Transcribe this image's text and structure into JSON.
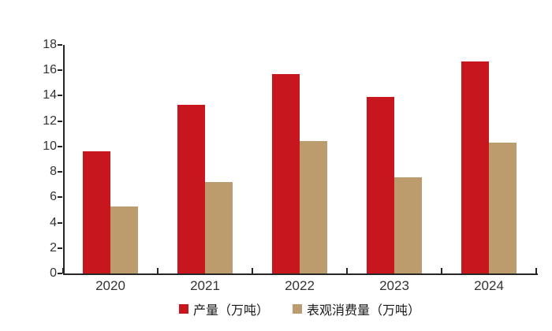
{
  "chart_data": {
    "type": "bar",
    "categories": [
      "2020",
      "2021",
      "2022",
      "2023",
      "2024"
    ],
    "series": [
      {
        "name": "产量（万吨）",
        "color": "#C8161E",
        "values": [
          9.6,
          13.3,
          15.7,
          13.9,
          16.7
        ]
      },
      {
        "name": "表观消费量（万吨）",
        "color": "#BC9B6D",
        "values": [
          5.3,
          7.2,
          10.4,
          7.6,
          10.3
        ]
      }
    ],
    "title": "",
    "xlabel": "",
    "ylabel": "",
    "ylim": [
      0,
      18
    ],
    "y_ticks": [
      0,
      2,
      4,
      6,
      8,
      10,
      12,
      14,
      16,
      18
    ],
    "grid": false,
    "legend_position": "bottom",
    "axis_color": "#262626",
    "tick_label_color": "#333333",
    "background_color": "#ffffff"
  }
}
